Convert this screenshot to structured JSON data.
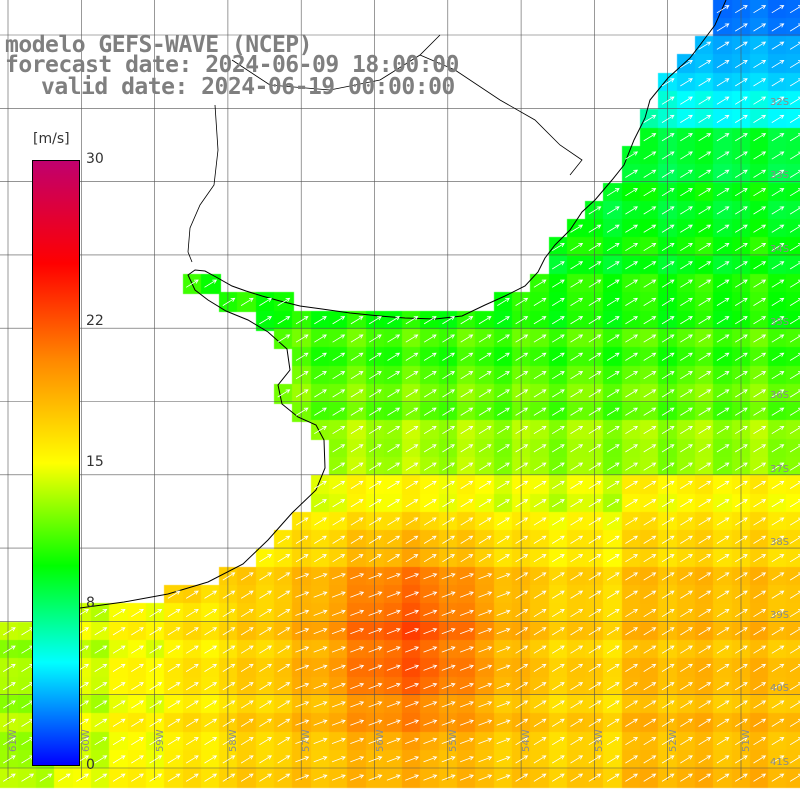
{
  "header": {
    "title_line1": "modelo GEFS-WAVE (NCEP)",
    "title_line2": "forecast date: 2024-06-09 18:00:00",
    "title_line3": "valid date: 2024-06-19 00:00:00"
  },
  "legend": {
    "unit": "[m/s]",
    "min": 0,
    "max": 30,
    "ticks": [
      {
        "label": "30",
        "value": 30
      },
      {
        "label": "22",
        "value": 22
      },
      {
        "label": "15",
        "value": 15
      },
      {
        "label": "8",
        "value": 8
      },
      {
        "label": "0",
        "value": 0
      }
    ],
    "colors": [
      "#0000ff",
      "#00ffff",
      "#00ff00",
      "#ffff00",
      "#ff8800",
      "#ff0000",
      "#c0006e"
    ]
  },
  "map": {
    "lat_labels": [
      "32S",
      "33S",
      "34S",
      "35S",
      "36S",
      "37S",
      "38S",
      "39S",
      "40S",
      "41S"
    ],
    "lon_labels": [
      "61W",
      "60W",
      "59W",
      "58W",
      "57W",
      "56W",
      "55W",
      "54W",
      "53W",
      "52W",
      "51W"
    ],
    "wind_direction": "south-west to north-east",
    "land_color": "#ffffff",
    "coast_color": "#000000"
  }
}
